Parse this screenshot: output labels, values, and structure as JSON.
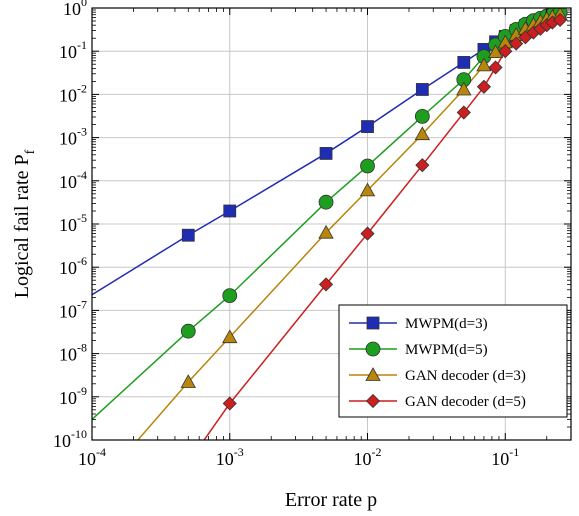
{
  "chart_data": {
    "type": "line",
    "xlabel": "Error rate p",
    "ylabel": "Logical fail rate P",
    "ylabel_subscript": "f",
    "xscale": "log",
    "yscale": "log",
    "xlim": [
      0.0001,
      0.3
    ],
    "ylim": [
      1e-10,
      1
    ],
    "grid": true,
    "legend_position": "bottom-right",
    "x_ticks": [
      {
        "base": "10",
        "exp": "-4",
        "value": 0.0001
      },
      {
        "base": "10",
        "exp": "-3",
        "value": 0.001
      },
      {
        "base": "10",
        "exp": "-2",
        "value": 0.01
      },
      {
        "base": "10",
        "exp": "-1",
        "value": 0.1
      }
    ],
    "y_ticks": [
      {
        "base": "10",
        "exp": "0",
        "value": 1
      },
      {
        "base": "10",
        "exp": "-1",
        "value": 0.1
      },
      {
        "base": "10",
        "exp": "-2",
        "value": 0.01
      },
      {
        "base": "10",
        "exp": "-3",
        "value": 0.001
      },
      {
        "base": "10",
        "exp": "-4",
        "value": 0.0001
      },
      {
        "base": "10",
        "exp": "-5",
        "value": 1e-05
      },
      {
        "base": "10",
        "exp": "-6",
        "value": 1e-06
      },
      {
        "base": "10",
        "exp": "-7",
        "value": 1e-07
      },
      {
        "base": "10",
        "exp": "-8",
        "value": 1e-08
      },
      {
        "base": "10",
        "exp": "-9",
        "value": 1e-09
      },
      {
        "base": "10",
        "exp": "-10",
        "value": 1e-10
      }
    ],
    "series": [
      {
        "name": "MWPM(d=3)",
        "color": "#1f2db4",
        "marker": "square",
        "line_x": [
          0.0001,
          0.0005,
          0.001,
          0.005,
          0.01,
          0.025,
          0.05,
          0.07,
          0.085,
          0.1,
          0.12,
          0.14,
          0.16,
          0.18,
          0.2,
          0.22,
          0.25
        ],
        "line_y": [
          2.3e-07,
          5.5e-06,
          2e-05,
          0.00043,
          0.0018,
          0.013,
          0.055,
          0.11,
          0.165,
          0.22,
          0.3,
          0.39,
          0.46,
          0.53,
          0.6,
          0.67,
          0.75
        ],
        "x": [
          0.0005,
          0.001,
          0.005,
          0.01,
          0.025,
          0.05,
          0.07,
          0.085,
          0.1,
          0.12,
          0.14,
          0.16,
          0.18,
          0.2,
          0.22,
          0.25
        ],
        "y": [
          5.5e-06,
          2e-05,
          0.00043,
          0.0018,
          0.013,
          0.055,
          0.11,
          0.165,
          0.22,
          0.3,
          0.39,
          0.46,
          0.53,
          0.6,
          0.67,
          0.75
        ]
      },
      {
        "name": "MWPM(d=5)",
        "color": "#1e9e1e",
        "marker": "circle",
        "line_x": [
          0.0001,
          0.0005,
          0.001,
          0.005,
          0.01,
          0.025,
          0.05,
          0.07,
          0.085,
          0.1,
          0.12,
          0.14,
          0.16,
          0.18,
          0.2,
          0.22,
          0.25
        ],
        "line_y": [
          3e-10,
          3.3e-08,
          2.2e-07,
          3.2e-05,
          0.00022,
          0.0031,
          0.022,
          0.075,
          0.14,
          0.22,
          0.32,
          0.42,
          0.51,
          0.58,
          0.65,
          0.71,
          0.79
        ],
        "x": [
          0.0005,
          0.001,
          0.005,
          0.01,
          0.025,
          0.05,
          0.07,
          0.085,
          0.1,
          0.12,
          0.14,
          0.16,
          0.18,
          0.2,
          0.22,
          0.25
        ],
        "y": [
          3.3e-08,
          2.2e-07,
          3.2e-05,
          0.00022,
          0.0031,
          0.022,
          0.075,
          0.14,
          0.22,
          0.32,
          0.42,
          0.51,
          0.58,
          0.65,
          0.71,
          0.79
        ]
      },
      {
        "name": "GAN decoder (d=3)",
        "color": "#b8860b",
        "marker": "triangle",
        "line_x": [
          0.0001,
          0.0005,
          0.001,
          0.005,
          0.01,
          0.025,
          0.05,
          0.07,
          0.085,
          0.1,
          0.12,
          0.14,
          0.16,
          0.18,
          0.2,
          0.22,
          0.25
        ],
        "line_y": [
          6e-12,
          2.2e-09,
          2.4e-08,
          6.3e-06,
          6e-05,
          0.0012,
          0.013,
          0.047,
          0.095,
          0.16,
          0.24,
          0.33,
          0.41,
          0.49,
          0.56,
          0.62,
          0.71
        ],
        "x": [
          0.0005,
          0.001,
          0.005,
          0.01,
          0.025,
          0.05,
          0.07,
          0.085,
          0.1,
          0.12,
          0.14,
          0.16,
          0.18,
          0.2,
          0.22,
          0.25
        ],
        "y": [
          2.2e-09,
          2.4e-08,
          6.3e-06,
          6e-05,
          0.0012,
          0.013,
          0.047,
          0.095,
          0.16,
          0.24,
          0.33,
          0.41,
          0.49,
          0.56,
          0.62,
          0.71
        ]
      },
      {
        "name": "GAN decoder (d=5)",
        "color": "#cc1f1f",
        "marker": "diamond",
        "line_x": [
          0.0005,
          0.001,
          0.005,
          0.01,
          0.025,
          0.05,
          0.07,
          0.085,
          0.1,
          0.12,
          0.14,
          0.16,
          0.18,
          0.2,
          0.22,
          0.25
        ],
        "line_y": [
          3e-11,
          7e-10,
          4e-07,
          6e-06,
          0.00023,
          0.0038,
          0.015,
          0.042,
          0.1,
          0.15,
          0.21,
          0.27,
          0.33,
          0.4,
          0.46,
          0.53
        ],
        "x": [
          0.001,
          0.005,
          0.01,
          0.025,
          0.05,
          0.07,
          0.085,
          0.1,
          0.12,
          0.14,
          0.16,
          0.18,
          0.2,
          0.22,
          0.25
        ],
        "y": [
          7e-10,
          4e-07,
          6e-06,
          0.00023,
          0.0038,
          0.015,
          0.042,
          0.1,
          0.15,
          0.21,
          0.27,
          0.33,
          0.4,
          0.46,
          0.53
        ]
      }
    ]
  }
}
